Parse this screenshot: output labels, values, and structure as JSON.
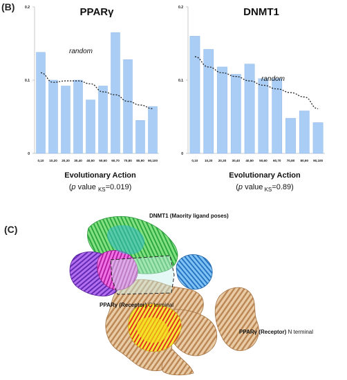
{
  "panel_b_label": "(B)",
  "panel_c_label": "(C)",
  "chart_data": [
    {
      "type": "bar",
      "title": "PPARγ",
      "categories": [
        "0,10",
        "10,20",
        "20,30",
        "30,40",
        "40,50",
        "50,60",
        "60,70",
        "70,80",
        "80,90",
        "90,100"
      ],
      "values": [
        0.138,
        0.1,
        0.092,
        0.1,
        0.073,
        0.092,
        0.165,
        0.128,
        0.045,
        0.064
      ],
      "series": [
        {
          "name": "random",
          "values": [
            0.11,
            0.097,
            0.099,
            0.099,
            0.095,
            0.084,
            0.08,
            0.071,
            0.066,
            0.061
          ]
        }
      ],
      "ylim": [
        0,
        0.2
      ],
      "yticks": [
        "0",
        "0.1",
        "0.2"
      ],
      "xlabel": "Evolutionary Action",
      "pvalue_prefix": "p",
      "pvalue_mid": " value ",
      "pvalue_sub": "KS",
      "pvalue_rest": "=0.019)",
      "annotation": "random",
      "grid": false
    },
    {
      "type": "bar",
      "title": "DNMT1",
      "categories": [
        "0,10",
        "10,20",
        "20,30",
        "30,40",
        "40,50",
        "50,60",
        "60,70",
        "70,80",
        "80,90",
        "90,100"
      ],
      "values": [
        0.16,
        0.142,
        0.118,
        0.108,
        0.122,
        0.102,
        0.102,
        0.048,
        0.058,
        0.042
      ],
      "series": [
        {
          "name": "random",
          "values": [
            0.132,
            0.118,
            0.11,
            0.105,
            0.099,
            0.093,
            0.088,
            0.083,
            0.077,
            0.061
          ]
        }
      ],
      "ylim": [
        0,
        0.2
      ],
      "yticks": [
        "0",
        "0.1",
        "0.2"
      ],
      "xlabel": "Evolutionary  Action",
      "pvalue_prefix": "p",
      "pvalue_mid": " value",
      "pvalue_sub": " KS",
      "pvalue_rest": "=0.89)",
      "annotation": "random",
      "grid": false
    }
  ],
  "figure_c": {
    "dnmt_label": "DNMT1 (Maority ligand poses)",
    "pparg_c_bold": "PPARγ (Receptor)",
    "pparg_c_rest": " C terminal",
    "pparg_n_bold": "PPARγ (Receptor)",
    "pparg_n_rest": " N terminal",
    "colors": {
      "protein_receptor": "#c9955e",
      "dnmt_green": "#3cc84a",
      "dnmt_cyan": "#29b6c9",
      "dnmt_magenta": "#d020c8",
      "dnmt_purple": "#7a2bd0",
      "dnmt_blue": "#2a8ad8",
      "binding_yellow": "#f2e21a",
      "binding_red": "#e2321e"
    }
  }
}
